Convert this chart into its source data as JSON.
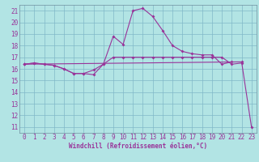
{
  "xlabel": "Windchill (Refroidissement éolien,°C)",
  "background_color": "#b2e4e4",
  "grid_color": "#80b8c8",
  "line_color": "#993399",
  "spine_color": "#7090a0",
  "x_values": [
    0,
    1,
    2,
    3,
    4,
    5,
    6,
    7,
    8,
    9,
    10,
    11,
    12,
    13,
    14,
    15,
    16,
    17,
    18,
    19,
    20,
    21,
    22,
    23
  ],
  "series1": [
    16.4,
    16.5,
    16.4,
    16.3,
    16.0,
    15.6,
    15.6,
    15.5,
    16.4,
    17.0,
    17.0,
    17.0,
    17.0,
    17.0,
    17.0,
    17.0,
    17.0,
    17.0,
    17.0,
    17.0,
    17.0,
    16.4,
    16.5,
    null
  ],
  "series2": [
    16.4,
    16.5,
    16.4,
    16.3,
    16.0,
    15.6,
    15.6,
    15.9,
    16.4,
    18.8,
    18.1,
    21.0,
    21.2,
    20.5,
    19.3,
    18.0,
    17.5,
    17.3,
    17.2,
    17.2,
    16.4,
    16.6,
    null,
    null
  ],
  "series3": [
    16.4,
    null,
    null,
    null,
    null,
    null,
    null,
    null,
    null,
    null,
    null,
    null,
    null,
    null,
    null,
    null,
    null,
    null,
    null,
    null,
    null,
    null,
    16.6,
    11.0
  ],
  "xlim": [
    -0.5,
    23.5
  ],
  "ylim": [
    10.5,
    21.5
  ],
  "yticks": [
    11,
    12,
    13,
    14,
    15,
    16,
    17,
    18,
    19,
    20,
    21
  ],
  "xticks": [
    0,
    1,
    2,
    3,
    4,
    5,
    6,
    7,
    8,
    9,
    10,
    11,
    12,
    13,
    14,
    15,
    16,
    17,
    18,
    19,
    20,
    21,
    22,
    23
  ],
  "tick_fontsize": 5.5,
  "xlabel_fontsize": 5.5,
  "line_width": 0.8,
  "marker_size": 2.0
}
